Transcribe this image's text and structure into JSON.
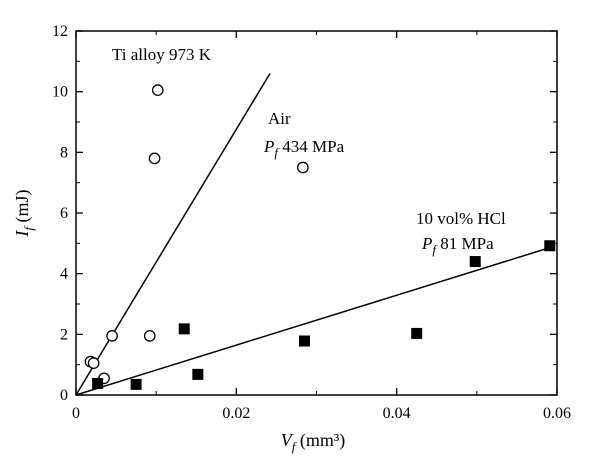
{
  "chart_data": {
    "type": "scatter",
    "title": "",
    "xlabel": {
      "symbol": "V",
      "sub": "f",
      "unit": "(mm³)"
    },
    "ylabel": {
      "symbol": "I",
      "sub": "f",
      "unit": "(mJ)"
    },
    "xlim": [
      0,
      0.06
    ],
    "ylim": [
      0,
      12
    ],
    "xticks": [
      0,
      0.02,
      0.04,
      0.06
    ],
    "xtick_labels": [
      "0",
      "0.02",
      "0.04",
      "0.06"
    ],
    "yticks": [
      0,
      2,
      4,
      6,
      8,
      10,
      12
    ],
    "ytick_labels": [
      "0",
      "2",
      "4",
      "6",
      "8",
      "10",
      "12"
    ],
    "grid": false,
    "series": [
      {
        "marker": "open-circle",
        "points": [
          [
            0.0018,
            1.1
          ],
          [
            0.0022,
            1.05
          ],
          [
            0.0035,
            0.55
          ],
          [
            0.0045,
            1.95
          ],
          [
            0.0098,
            7.8
          ],
          [
            0.0102,
            10.05
          ],
          [
            0.0092,
            1.95
          ],
          [
            0.0283,
            7.5
          ]
        ],
        "fit_line": {
          "from": [
            0,
            0
          ],
          "to": [
            0.0242,
            10.6
          ]
        }
      },
      {
        "marker": "filled-square",
        "points": [
          [
            0.0027,
            0.38
          ],
          [
            0.0075,
            0.35
          ],
          [
            0.0135,
            2.18
          ],
          [
            0.0152,
            0.68
          ],
          [
            0.0285,
            1.78
          ],
          [
            0.0425,
            2.03
          ],
          [
            0.0498,
            4.4
          ],
          [
            0.0591,
            4.92
          ]
        ],
        "fit_line": {
          "from": [
            0,
            0
          ],
          "to": [
            0.059,
            4.85
          ]
        }
      }
    ],
    "annotations": {
      "main": "Ti alloy 973 K",
      "air": "Air",
      "air_pf": {
        "symbol": "P",
        "sub": "f",
        "value": "434 MPa"
      },
      "hcl": "10 vol% HCl",
      "hcl_pf": {
        "symbol": "P",
        "sub": "f",
        "value": "81 MPa"
      }
    }
  }
}
